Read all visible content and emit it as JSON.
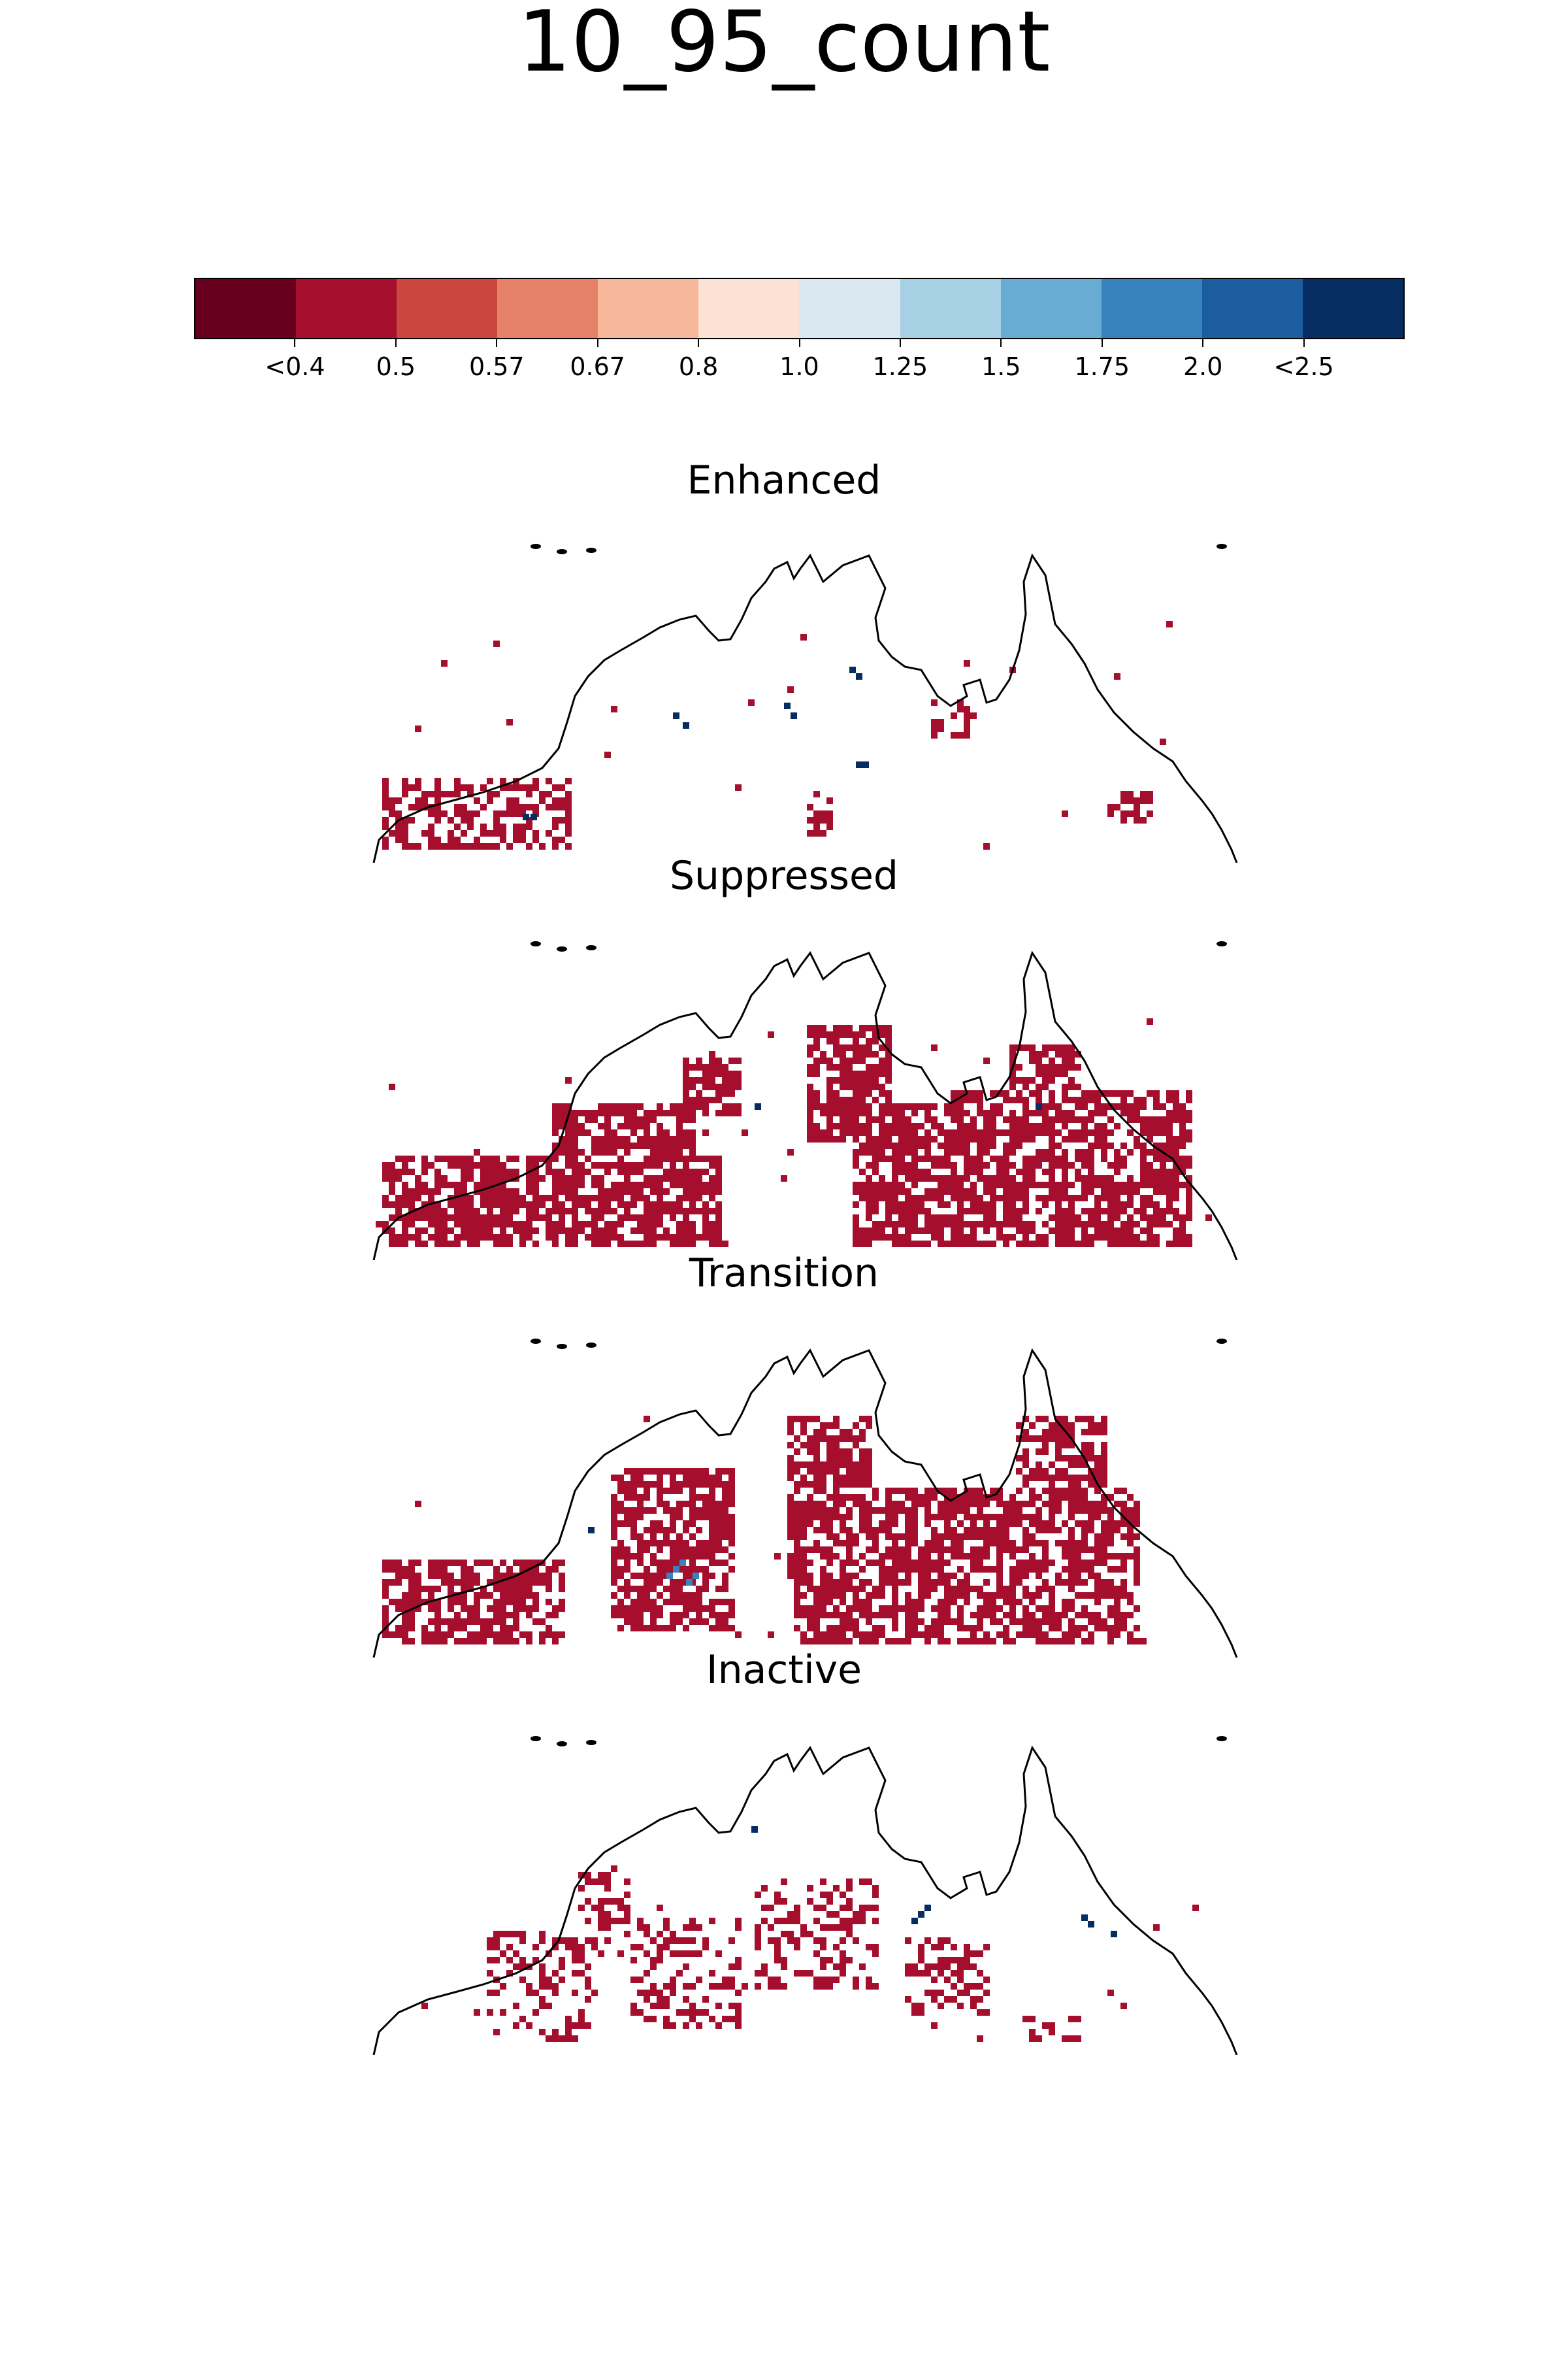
{
  "figure": {
    "title": "10_95_count"
  },
  "colorbar": {
    "colors": [
      "#67001f",
      "#a50f2d",
      "#cc4640",
      "#e58267",
      "#f6b79b",
      "#fbe2d4",
      "#d9e8f1",
      "#a8d0e4",
      "#69acd3",
      "#3783bd",
      "#1c5da0",
      "#062d61"
    ],
    "tick_labels": [
      "<0.4",
      "0.5",
      "0.57",
      "0.67",
      "0.8",
      "1.0",
      "1.25",
      "1.5",
      "1.75",
      "2.0",
      "<2.5"
    ]
  },
  "chart_data": {
    "type": "heatmap",
    "title": "10_95_count",
    "region": "Northern Australia",
    "scale": "ratio categories (colorbar)",
    "panels": [
      {
        "title": "Enhanced",
        "dominant_category": "0.5",
        "note": "sparse red cells in west Kimberley and Cape York, a few <2.5 cells in Top End"
      },
      {
        "title": "Suppressed",
        "dominant_category": "0.5",
        "note": "widespread red cells across most of the region"
      },
      {
        "title": "Transition",
        "dominant_category": "0.5",
        "note": "widespread red cells, some 2.0 cells near Kimberley"
      },
      {
        "title": "Inactive",
        "dominant_category": "0.5",
        "note": "scattered red cells, a few <2.5 cells"
      }
    ]
  }
}
